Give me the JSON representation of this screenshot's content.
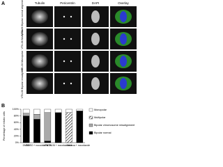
{
  "panel_a": {
    "label": "A",
    "columns": [
      "Tubulin",
      "Pericentrin",
      "DAPI",
      "Overlay"
    ],
    "rows": [
      "VTN-06 Bipolar normal alignment",
      "VTN-06 Multipolar",
      "VTN-06 Monopolar",
      "VTN-06 Bipolar misaligned"
    ]
  },
  "chart_data": {
    "type": "stacked_bar",
    "panel_label": "B",
    "ylabel": "Percentage of mitotic cells",
    "categories": [
      "DMSO",
      "DMSO + nocodazole",
      "VTN-06",
      "VTN-06 + nocodazole",
      "Vinca",
      "Vinca + nocodazole"
    ],
    "series": [
      {
        "name": "Bipolar normal",
        "color": "#000000",
        "values": [
          80,
          70,
          5,
          90,
          0,
          95
        ]
      },
      {
        "name": "Bipolar chromosome misalignment",
        "color": "#aaaaaa",
        "values": [
          8,
          15,
          85,
          0,
          0,
          0
        ]
      },
      {
        "name": "Multipolar",
        "color": "hatch",
        "values": [
          0,
          0,
          0,
          0,
          90,
          0
        ]
      },
      {
        "name": "Monopolar",
        "color": "#ffffff",
        "values": [
          12,
          15,
          10,
          10,
          10,
          5
        ]
      }
    ],
    "ylim": [
      0,
      100
    ],
    "yticks": [
      {
        "value": 0,
        "label": "0%"
      },
      {
        "value": 20,
        "label": "20%"
      },
      {
        "value": 40,
        "label": "40%"
      },
      {
        "value": 60,
        "label": "60%"
      },
      {
        "value": 80,
        "label": "80%"
      },
      {
        "value": 100,
        "label": "100%"
      }
    ]
  }
}
